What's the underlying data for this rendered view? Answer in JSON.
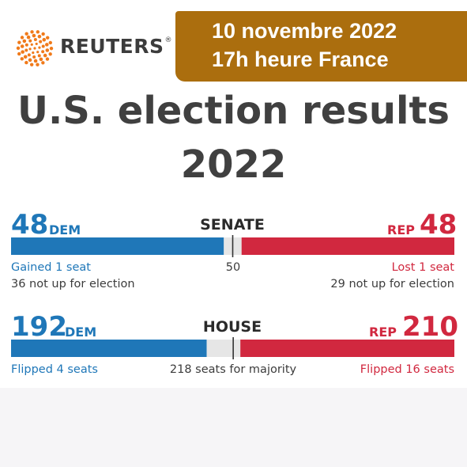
{
  "header": {
    "brand": "REUTERS",
    "registered": "®",
    "date_line1": "10 novembre 2022",
    "date_line2": "17h heure France",
    "date_box_color": "#ab6e0e",
    "logo_icon": "reuters-dot-logo-icon"
  },
  "title": {
    "line1": "U.S. election results",
    "line2": "2022"
  },
  "colors": {
    "dem": "#1f77b8",
    "rep": "#d1283f",
    "undecided": "#e6e6e6",
    "majority_line": "#333333"
  },
  "chart_data": [
    {
      "type": "bar",
      "chamber": "SENATE",
      "total_seats": 100,
      "majority_marker": 50,
      "majority_label": "50",
      "series": [
        {
          "name": "DEM",
          "value": 48
        },
        {
          "name": "REP",
          "value": 48
        }
      ],
      "dem_value": "48",
      "dem_label": "DEM",
      "rep_value": "48",
      "rep_label": "REP",
      "dem_note1": "Gained 1 seat",
      "dem_note2": "36 not up for election",
      "rep_note1": "Lost 1 seat",
      "rep_note2": "29 not up for election"
    },
    {
      "type": "bar",
      "chamber": "HOUSE",
      "total_seats": 435,
      "majority_marker": 218,
      "majority_label": "218 seats for majority",
      "series": [
        {
          "name": "DEM",
          "value": 192
        },
        {
          "name": "REP",
          "value": 210
        }
      ],
      "dem_value": "192",
      "dem_label": "DEM",
      "rep_value": "210",
      "rep_label": "REP",
      "dem_note1": "Flipped 4 seats",
      "rep_note1": "Flipped 16 seats"
    }
  ]
}
